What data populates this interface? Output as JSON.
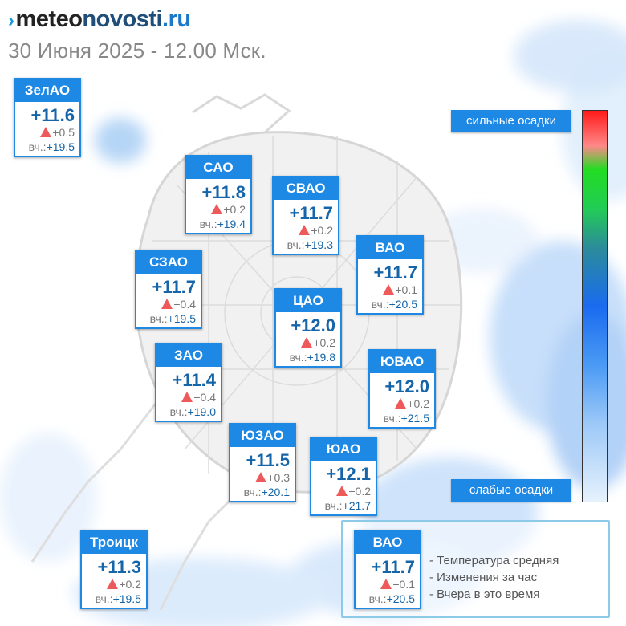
{
  "header": {
    "logo_prefix": "",
    "logo_brand": "meteo",
    "logo_brand2": "novosti",
    "logo_tld": ".ru",
    "subtitle": "30 Июня 2025 - 12.00 Мск."
  },
  "scale": {
    "top_label": "сильные осадки",
    "bottom_label": "слабые осадки"
  },
  "colors": {
    "accent": "#1e88e5",
    "temp_text": "#1565a8",
    "up_arrow": "#ee5a5a"
  },
  "districts": {
    "zelao": {
      "name": "ЗелАО",
      "temp": "+11.6",
      "delta": "+0.5",
      "ylabel": "вч.:",
      "yesterday": "+19.5"
    },
    "sao": {
      "name": "САО",
      "temp": "+11.8",
      "delta": "+0.2",
      "ylabel": "вч.:",
      "yesterday": "+19.4"
    },
    "svao": {
      "name": "СВАО",
      "temp": "+11.7",
      "delta": "+0.2",
      "ylabel": "вч.:",
      "yesterday": "+19.3"
    },
    "szao": {
      "name": "СЗАО",
      "temp": "+11.7",
      "delta": "+0.4",
      "ylabel": "вч.:",
      "yesterday": "+19.5"
    },
    "vao": {
      "name": "ВАО",
      "temp": "+11.7",
      "delta": "+0.1",
      "ylabel": "вч.:",
      "yesterday": "+20.5"
    },
    "cao": {
      "name": "ЦАО",
      "temp": "+12.0",
      "delta": "+0.2",
      "ylabel": "вч.:",
      "yesterday": "+19.8"
    },
    "zao": {
      "name": "ЗАО",
      "temp": "+11.4",
      "delta": "+0.4",
      "ylabel": "вч.:",
      "yesterday": "+19.0"
    },
    "yuvao": {
      "name": "ЮВАО",
      "temp": "+12.0",
      "delta": "+0.2",
      "ylabel": "вч.:",
      "yesterday": "+21.5"
    },
    "yuzao": {
      "name": "ЮЗАО",
      "temp": "+11.5",
      "delta": "+0.3",
      "ylabel": "вч.:",
      "yesterday": "+20.1"
    },
    "yuao": {
      "name": "ЮАО",
      "temp": "+12.1",
      "delta": "+0.2",
      "ylabel": "вч.:",
      "yesterday": "+21.7"
    },
    "troick": {
      "name": "Троицк",
      "temp": "+11.3",
      "delta": "+0.2",
      "ylabel": "вч.:",
      "yesterday": "+19.5"
    }
  },
  "legend": {
    "sample": {
      "name": "ВАО",
      "temp": "+11.7",
      "delta": "+0.1",
      "ylabel": "вч.:",
      "yesterday": "+20.5"
    },
    "line1": "- Температура средняя",
    "line2": "- Изменения за час",
    "line3": "- Вчера в это время"
  }
}
